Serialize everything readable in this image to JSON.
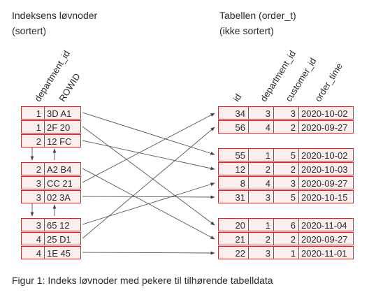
{
  "left_title": [
    "Indeksens løvnoder",
    "(sortert)"
  ],
  "right_title": [
    "Tabellen (order_t)",
    "(ikke sortert)"
  ],
  "index_headers": [
    "department_id",
    "ROWID"
  ],
  "table_headers": [
    "id",
    "department_id",
    "customer_id",
    "order_time"
  ],
  "index_blocks": [
    [
      [
        "1",
        "3D A1"
      ],
      [
        "1",
        "2F 20"
      ],
      [
        "2",
        "12 FC"
      ]
    ],
    [
      [
        "2",
        "A2 B4"
      ],
      [
        "3",
        "CC 21"
      ],
      [
        "3",
        "02 3A"
      ]
    ],
    [
      [
        "3",
        "65 12"
      ],
      [
        "4",
        "25 D1"
      ],
      [
        "4",
        "1E 45"
      ]
    ]
  ],
  "table_blocks": [
    [
      [
        "34",
        "3",
        "3",
        "2020-10-02"
      ],
      [
        "56",
        "4",
        "2",
        "2020-09-27"
      ]
    ],
    [
      [
        "55",
        "1",
        "5",
        "2020-10-02"
      ],
      [
        "12",
        "2",
        "2",
        "2020-10-03"
      ],
      [
        "8",
        "4",
        "3",
        "2020-09-27"
      ],
      [
        "31",
        "3",
        "5",
        "2020-10-15"
      ]
    ],
    [
      [
        "20",
        "1",
        "6",
        "2020-11-04"
      ],
      [
        "21",
        "2",
        "2",
        "2020-09-27"
      ],
      [
        "22",
        "3",
        "1",
        "2020-11-01"
      ]
    ]
  ],
  "caption": "Figur 1: Indeks løvnoder med pekere til tilhørende tabelldata",
  "colors": {
    "border": "#b43a3a",
    "fill": "#fdeeee",
    "arrow": "#555555"
  }
}
